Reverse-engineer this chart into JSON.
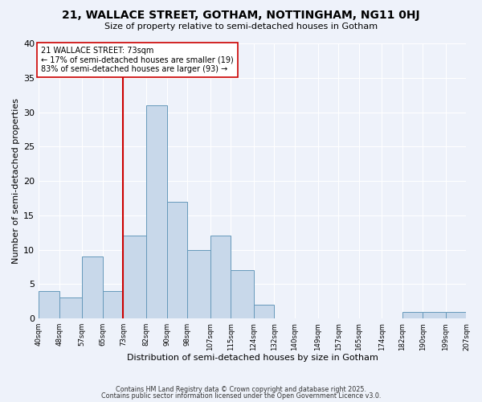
{
  "title": "21, WALLACE STREET, GOTHAM, NOTTINGHAM, NG11 0HJ",
  "subtitle": "Size of property relative to semi-detached houses in Gotham",
  "xlabel": "Distribution of semi-detached houses by size in Gotham",
  "ylabel": "Number of semi-detached properties",
  "bin_edges": [
    40,
    48,
    57,
    65,
    73,
    82,
    90,
    98,
    107,
    115,
    124,
    132,
    140,
    149,
    157,
    165,
    174,
    182,
    190,
    199,
    207
  ],
  "bar_heights": [
    4,
    3,
    9,
    4,
    12,
    31,
    17,
    10,
    12,
    7,
    2,
    0,
    0,
    0,
    0,
    0,
    0,
    1,
    1,
    1
  ],
  "bar_color": "#c8d8ea",
  "bar_edgecolor": "#6699bb",
  "vline_x": 73,
  "vline_color": "#cc0000",
  "annotation_title": "21 WALLACE STREET: 73sqm",
  "annotation_line1": "← 17% of semi-detached houses are smaller (19)",
  "annotation_line2": "83% of semi-detached houses are larger (93) →",
  "annotation_box_edgecolor": "#cc0000",
  "annotation_box_facecolor": "#ffffff",
  "ylim": [
    0,
    40
  ],
  "yticks": [
    0,
    5,
    10,
    15,
    20,
    25,
    30,
    35,
    40
  ],
  "tick_labels": [
    "40sqm",
    "48sqm",
    "57sqm",
    "65sqm",
    "73sqm",
    "82sqm",
    "90sqm",
    "98sqm",
    "107sqm",
    "115sqm",
    "124sqm",
    "132sqm",
    "140sqm",
    "149sqm",
    "157sqm",
    "165sqm",
    "174sqm",
    "182sqm",
    "190sqm",
    "199sqm",
    "207sqm"
  ],
  "footer1": "Contains HM Land Registry data © Crown copyright and database right 2025.",
  "footer2": "Contains public sector information licensed under the Open Government Licence v3.0.",
  "background_color": "#eef2fa",
  "grid_color": "#ffffff"
}
